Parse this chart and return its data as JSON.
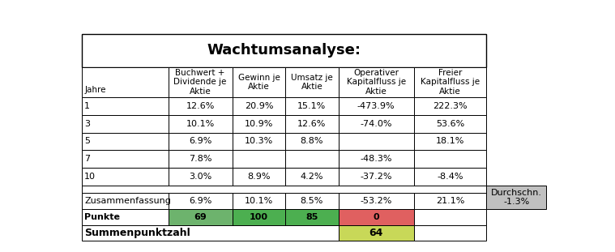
{
  "title": "Wachtumsanalyse:",
  "col_headers_row1": [
    "",
    "Buchwert +",
    "Gewinn je",
    "Umsatz je",
    "Operativer",
    "Freier"
  ],
  "col_headers_row2": [
    "",
    "Dividende je",
    "Aktie",
    "Aktie",
    "Kapitalfluss je",
    "Kapitalfluss je"
  ],
  "col_headers_row3": [
    "Jahre",
    "Aktie",
    "",
    "",
    "Aktie",
    "Aktie"
  ],
  "rows": [
    [
      "1",
      "12.6%",
      "20.9%",
      "15.1%",
      "-473.9%",
      "222.3%"
    ],
    [
      "3",
      "10.1%",
      "10.9%",
      "12.6%",
      "-74.0%",
      "53.6%"
    ],
    [
      "5",
      "6.9%",
      "10.3%",
      "8.8%",
      "",
      "18.1%"
    ],
    [
      "7",
      "7.8%",
      "",
      "",
      "-48.3%",
      ""
    ],
    [
      "10",
      "3.0%",
      "8.9%",
      "4.2%",
      "-37.2%",
      "-8.4%"
    ]
  ],
  "zusammenfassung": [
    "Zusammenfassung",
    "6.9%",
    "10.1%",
    "8.5%",
    "-53.2%",
    "21.1%"
  ],
  "punkte": [
    "Punkte",
    "69",
    "100",
    "85",
    "0",
    ""
  ],
  "summenpunktzahl_label": "Summenpunktzahl",
  "summenpunktzahl_val": "64",
  "durchschn_label": "Durchschn.",
  "durchschn_value": "-1.3%",
  "punkte_colors": [
    "#6db36d",
    "#4caf50",
    "#4caf50",
    "#e06060",
    ""
  ],
  "summen_color": "#c8d858",
  "durchschn_bg": "#c0c0c0",
  "title_fontsize": 13,
  "header_fontsize": 7.5,
  "cell_fontsize": 8,
  "label_fontsize": 8
}
